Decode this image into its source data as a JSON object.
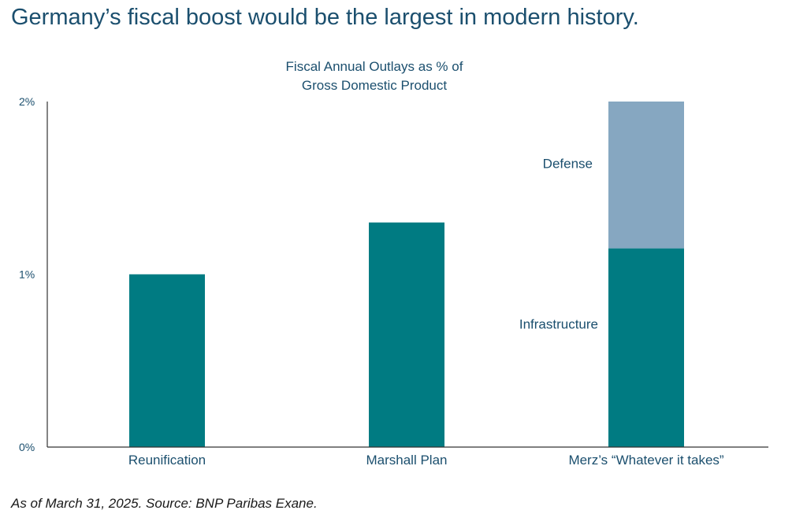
{
  "headline": "Germany’s fiscal boost would be the largest in modern history.",
  "footnote": "As of March 31, 2025. Source: BNP Paribas Exane.",
  "colors": {
    "headline": "#1b4f6e",
    "teal": "#007b82",
    "light_blue": "#86a7c1",
    "axis_text": "#1b4f6e",
    "axis_line": "#333333"
  },
  "chart_data": {
    "type": "bar",
    "stacked": true,
    "title": "Fiscal Annual Outlays as % of Gross Domestic Product",
    "title_lines": [
      "Fiscal Annual Outlays as % of",
      "Gross Domestic Product"
    ],
    "categories": [
      "Reunification",
      "Marshall Plan",
      "Merz’s “Whatever it takes”"
    ],
    "series": [
      {
        "name": "Infrastructure",
        "values": [
          1.0,
          1.3,
          1.15
        ],
        "color": "#007b82"
      },
      {
        "name": "Defense",
        "values": [
          0,
          0,
          0.85
        ],
        "color": "#86a7c1"
      }
    ],
    "inline_labels": [
      "Defense",
      "Infrastructure"
    ],
    "yticks": [
      0,
      1,
      2
    ],
    "ytick_labels": [
      "0%",
      "1%",
      "2%"
    ],
    "ylim": [
      0,
      2
    ],
    "grid": false,
    "legend": "none"
  }
}
